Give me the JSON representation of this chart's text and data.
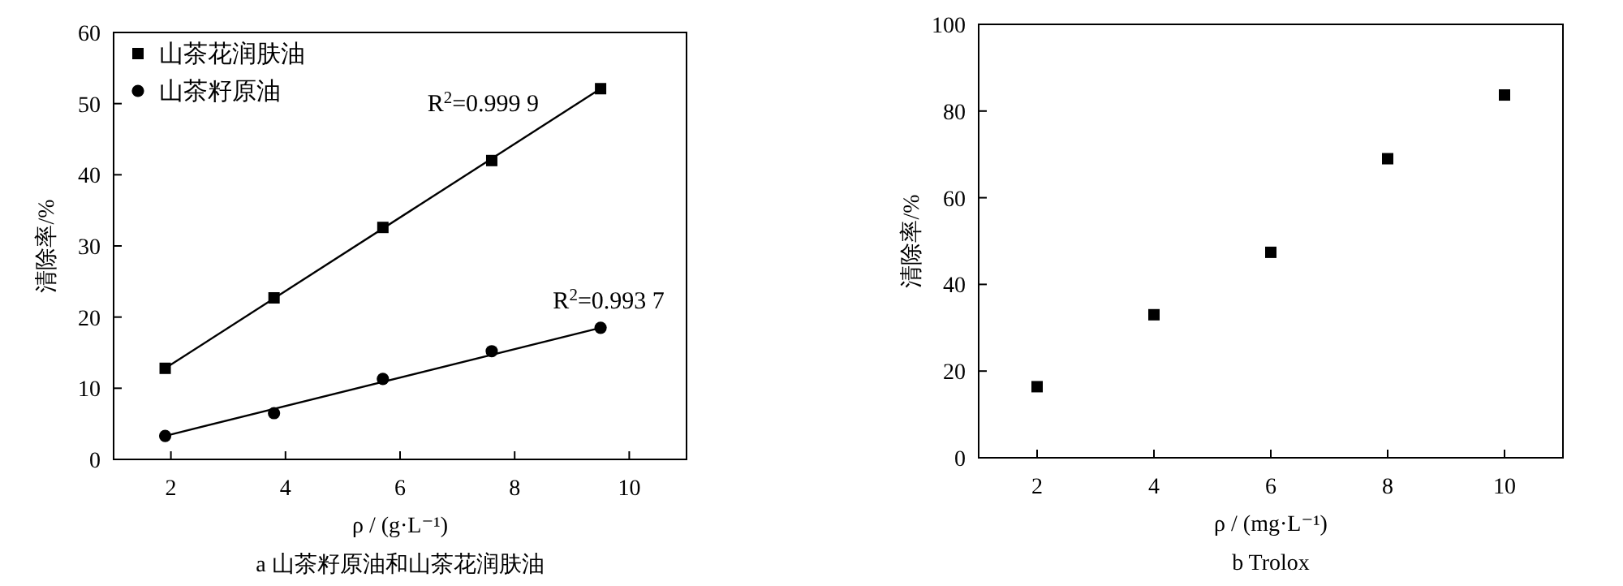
{
  "chart_data": [
    {
      "type": "scatter",
      "title": "a 山茶籽原油和山茶花润肤油",
      "xlabel": "ρ / (g·L⁻¹)",
      "ylabel": "清除率/%",
      "xlim": [
        1,
        11
      ],
      "xticks": [
        2,
        4,
        6,
        8,
        10
      ],
      "ylim": [
        0,
        60
      ],
      "yticks": [
        0,
        10,
        20,
        30,
        40,
        50,
        60
      ],
      "grid": false,
      "legend": "top left",
      "series": [
        {
          "name": "山茶花润肤油",
          "color": "#000000",
          "marker": "square",
          "x": [
            1.9,
            3.8,
            5.7,
            7.6,
            9.5
          ],
          "values": [
            12.8,
            22.7,
            32.6,
            42.0,
            52.1
          ]
        },
        {
          "name": "山茶籽原油",
          "color": "#000000",
          "marker": "circle",
          "x": [
            1.9,
            3.8,
            5.7,
            7.6,
            9.5
          ],
          "values": [
            3.3,
            6.5,
            11.3,
            15.2,
            18.5
          ]
        },
        {
          "type": "line",
          "color": "#000000",
          "marker": "none",
          "x": [
            1.9,
            9.5
          ],
          "values": [
            12.8,
            52.1
          ]
        },
        {
          "type": "line",
          "color": "#000000",
          "marker": "none",
          "x": [
            1.9,
            9.5
          ],
          "values": [
            3.3,
            18.5
          ]
        }
      ],
      "annotations": [
        "R$^{2}$=0.999 9",
        "R$^{2}$=0.993 7"
      ]
    },
    {
      "type": "scatter",
      "title": "b Trolox",
      "xlabel": "ρ / (mg·L⁻¹)",
      "ylabel": "清除率/%",
      "xlim": [
        1,
        11
      ],
      "xticks": [
        2,
        4,
        6,
        8,
        10
      ],
      "ylim": [
        0,
        100
      ],
      "yticks": [
        0,
        20,
        40,
        60,
        80,
        100
      ],
      "grid": false,
      "marker": "square",
      "series": [
        {
          "color": "#000000",
          "x": [
            2,
            4,
            6,
            8,
            10
          ],
          "values": [
            16.4,
            33.0,
            47.4,
            69.0,
            83.7
          ]
        }
      ]
    }
  ]
}
